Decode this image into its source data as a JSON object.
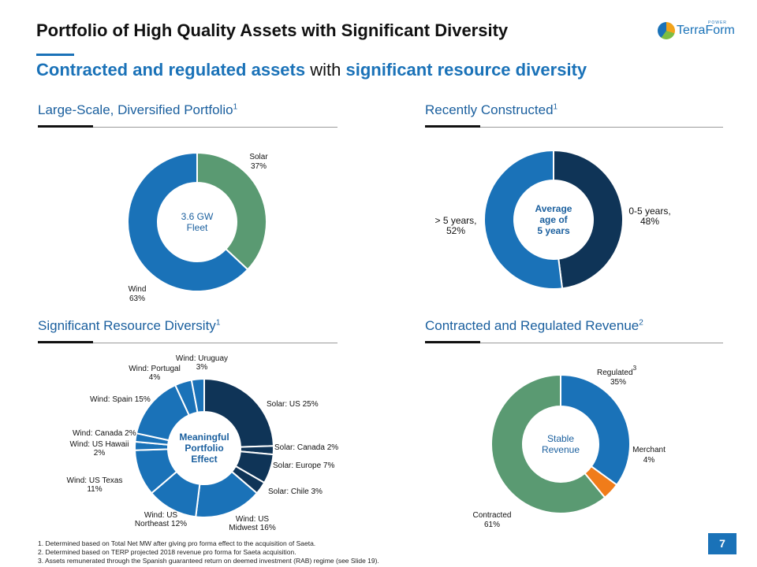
{
  "page": {
    "title": "Portfolio of High Quality Assets with Significant Diversity",
    "subtitle_part1": "Contracted and regulated assets",
    "subtitle_part2": " with ",
    "subtitle_part3": "significant resource diversity",
    "logo_text": "TerraForm",
    "logo_sup": "POWER",
    "page_number": "7",
    "footnotes": [
      "1.  Determined based on Total Net MW after giving pro forma effect to the acquisition of Saeta.",
      "2.  Determined based on TERP projected 2018 revenue pro forma for Saeta acquisition.",
      "3.  Assets remunerated through the Spanish guaranteed return on deemed investment (RAB) regime (see Slide 19)."
    ]
  },
  "sections": [
    {
      "title": "Large-Scale, Diversified Portfolio",
      "sup": "1"
    },
    {
      "title": "Recently Constructed",
      "sup": "1"
    },
    {
      "title": "Significant Resource Diversity",
      "sup": "1"
    },
    {
      "title": "Contracted and Regulated Revenue",
      "sup": "2"
    }
  ],
  "colors": {
    "dark_navy": "#0f3457",
    "blue": "#1a72b8",
    "green": "#5a9a72",
    "orange": "#f07c1a",
    "accent": "#1a5f9e"
  },
  "chart_data": [
    {
      "type": "pie",
      "center": [
        "3.6 GW",
        "Fleet"
      ],
      "slices": [
        {
          "label": "Solar",
          "value": 37,
          "display": "37%",
          "color": "#5a9a72"
        },
        {
          "label": "Wind",
          "value": 63,
          "display": "63%",
          "color": "#1a72b8"
        }
      ]
    },
    {
      "type": "pie",
      "center": [
        "Average",
        "age of",
        "5 years"
      ],
      "slices": [
        {
          "label": "0-5 years,",
          "value": 48,
          "display": "48%",
          "color": "#0f3457"
        },
        {
          "label": "> 5 years,",
          "value": 52,
          "display": "52%",
          "color": "#1a72b8"
        }
      ]
    },
    {
      "type": "pie",
      "center": [
        "Meaningful",
        "Portfolio",
        "Effect"
      ],
      "slices": [
        {
          "label": "Solar: US 25%",
          "value": 25,
          "color": "#0f3457"
        },
        {
          "label": "Solar: Canada 2%",
          "value": 2,
          "color": "#0f3457"
        },
        {
          "label": "Solar: Europe 7%",
          "value": 7,
          "color": "#0f3457"
        },
        {
          "label": "Solar: Chile 3%",
          "value": 3,
          "color": "#0f3457"
        },
        {
          "label": "Wind: US Midwest 16%",
          "value": 16,
          "color": "#1a72b8"
        },
        {
          "label": "Wind: US Northeast 12%",
          "value": 12,
          "color": "#1a72b8"
        },
        {
          "label": "Wind: US Texas 11%",
          "value": 11,
          "color": "#1a72b8"
        },
        {
          "label": "Wind: US Hawaii 2%",
          "value": 2,
          "color": "#1a72b8"
        },
        {
          "label": "Wind: Canada 2%",
          "value": 2,
          "color": "#1a72b8"
        },
        {
          "label": "Wind: Spain 15%",
          "value": 15,
          "color": "#1a72b8"
        },
        {
          "label": "Wind: Portugal 4%",
          "value": 4,
          "color": "#1a72b8"
        },
        {
          "label": "Wind: Uruguay 3%",
          "value": 3,
          "color": "#1a72b8"
        }
      ]
    },
    {
      "type": "pie",
      "center": [
        "Stable",
        "Revenue"
      ],
      "slices": [
        {
          "label": "Regulated",
          "sup": "3",
          "value": 35,
          "display": "35%",
          "color": "#1a72b8"
        },
        {
          "label": "Merchant",
          "value": 4,
          "display": "4%",
          "color": "#f07c1a"
        },
        {
          "label": "Contracted",
          "value": 61,
          "display": "61%",
          "color": "#5a9a72"
        }
      ]
    }
  ]
}
